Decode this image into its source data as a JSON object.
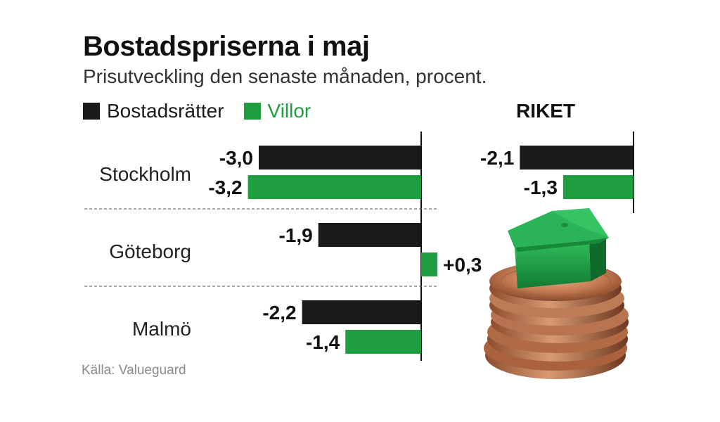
{
  "title": "Bostadspriserna i maj",
  "subtitle": "Prisutveckling den senaste månaden, procent.",
  "source": "Källa: Valueguard",
  "colors": {
    "bostadsratter": "#1a1a1a",
    "villor": "#1f9e3f"
  },
  "legend": [
    {
      "label": "Bostadsrätter",
      "color": "#1a1a1a"
    },
    {
      "label": "Villor",
      "color": "#1f9e3f"
    }
  ],
  "illustration": "green-house-on-coin-stack",
  "chart_data": [
    {
      "type": "bar",
      "orientation": "horizontal",
      "categories": [
        "Stockholm",
        "Göteborg",
        "Malmö"
      ],
      "series": [
        {
          "name": "Bostadsrätter",
          "values": [
            -3.0,
            -1.9,
            -2.2
          ],
          "labels": [
            "-3,0",
            "-1,9",
            "-2,2"
          ]
        },
        {
          "name": "Villor",
          "values": [
            -3.2,
            0.3,
            -1.4
          ],
          "labels": [
            "-3,2",
            "+0,3",
            "-1,4"
          ]
        }
      ],
      "xlim": [
        -3.2,
        0.3
      ],
      "legend_position": "top-left"
    },
    {
      "type": "bar",
      "orientation": "horizontal",
      "title": "RIKET",
      "series": [
        {
          "name": "Bostadsrätter",
          "values": [
            -2.1
          ],
          "labels": [
            "-2,1"
          ]
        },
        {
          "name": "Villor",
          "values": [
            -1.3
          ],
          "labels": [
            "-1,3"
          ]
        }
      ],
      "xlim": [
        -2.1,
        0
      ]
    }
  ]
}
